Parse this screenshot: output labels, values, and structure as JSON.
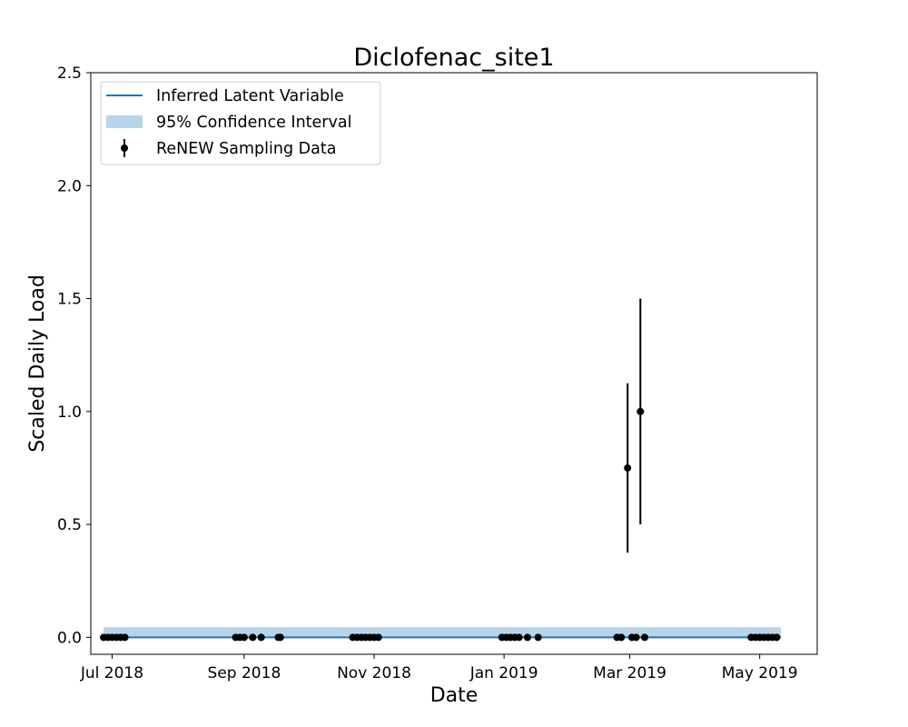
{
  "chart_data": {
    "type": "line",
    "title": "Diclofenac_site1",
    "xlabel": "Date",
    "ylabel": "Scaled Daily Load",
    "xlim": [
      "2018-06-21",
      "2019-05-28"
    ],
    "ylim": [
      -0.075,
      2.5
    ],
    "x_ticks": [
      "2018-07-01",
      "2018-09-01",
      "2018-11-01",
      "2019-01-01",
      "2019-03-01",
      "2019-05-01"
    ],
    "x_tick_labels": [
      "Jul 2018",
      "Sep 2018",
      "Nov 2018",
      "Jan 2019",
      "Mar 2019",
      "May 2019"
    ],
    "y_ticks": [
      0.0,
      0.5,
      1.0,
      1.5,
      2.0,
      2.5
    ],
    "y_tick_labels": [
      "0.0",
      "0.5",
      "1.0",
      "1.5",
      "2.0",
      "2.5"
    ],
    "grid": false,
    "legend_position": "top-left",
    "colors": {
      "latent": "#1f77b4",
      "ci_fill": "#b8d4e9",
      "sampling": "#000000"
    },
    "series": [
      {
        "name": "Inferred Latent Variable",
        "type": "line",
        "x": [
          "2018-06-27",
          "2019-05-11"
        ],
        "y": [
          0.0,
          0.0
        ]
      },
      {
        "name": "95% Confidence Interval",
        "type": "area",
        "x": [
          "2018-06-27",
          "2019-05-11"
        ],
        "lower": [
          0.0,
          0.0
        ],
        "upper": [
          0.045,
          0.045
        ]
      },
      {
        "name": "ReNEW Sampling Data",
        "type": "errorbar",
        "x": [
          "2018-06-27",
          "2018-06-29",
          "2018-07-01",
          "2018-07-03",
          "2018-07-05",
          "2018-07-07",
          "2018-08-28",
          "2018-08-30",
          "2018-09-01",
          "2018-09-05",
          "2018-09-09",
          "2018-09-17",
          "2018-09-18",
          "2018-10-22",
          "2018-10-24",
          "2018-10-26",
          "2018-10-28",
          "2018-10-30",
          "2018-11-01",
          "2018-11-03",
          "2018-12-31",
          "2019-01-02",
          "2019-01-04",
          "2019-01-06",
          "2019-01-08",
          "2019-01-12",
          "2019-01-17",
          "2019-02-23",
          "2019-02-25",
          "2019-02-28",
          "2019-03-02",
          "2019-03-04",
          "2019-03-06",
          "2019-03-08",
          "2019-04-27",
          "2019-04-29",
          "2019-05-01",
          "2019-05-03",
          "2019-05-05",
          "2019-05-07",
          "2019-05-09"
        ],
        "y": [
          0,
          0,
          0,
          0,
          0,
          0,
          0,
          0,
          0,
          0,
          0,
          0,
          0,
          0,
          0,
          0,
          0,
          0,
          0,
          0,
          0,
          0,
          0,
          0,
          0,
          0,
          0,
          0,
          0,
          0.75,
          0,
          0,
          1.0,
          0,
          0,
          0,
          0,
          0,
          0,
          0,
          0
        ],
        "err": [
          0,
          0,
          0,
          0,
          0,
          0,
          0,
          0,
          0,
          0,
          0,
          0,
          0,
          0,
          0,
          0,
          0,
          0,
          0,
          0,
          0,
          0,
          0,
          0,
          0,
          0,
          0,
          0,
          0,
          0.375,
          0,
          0,
          0.5,
          0,
          0,
          0,
          0,
          0,
          0,
          0,
          0
        ]
      }
    ]
  }
}
